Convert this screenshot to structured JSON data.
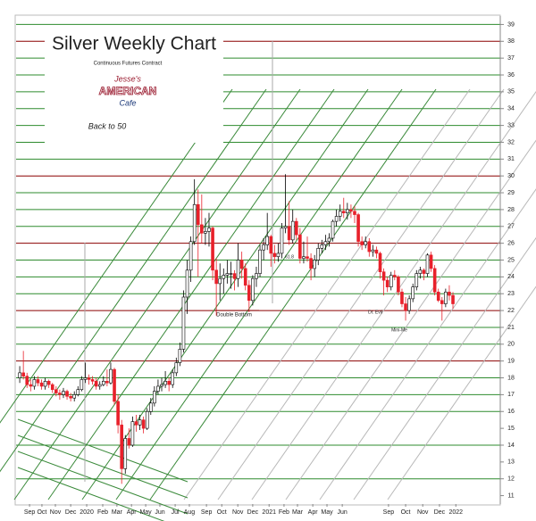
{
  "chart_data": {
    "type": "candlestick",
    "title": "Silver Weekly Chart",
    "subtitle": "Continuous Futures Contract",
    "logo": [
      "Jesse's",
      "AMERICAN",
      "Cafe"
    ],
    "tagline": "Back to 50",
    "annotations": [
      "Double Bottom",
      "61.8",
      "Dr. Evil",
      "Mini-Me"
    ],
    "up_color": "#ffffff",
    "down_color": "#e8202a",
    "ylim": [
      10.5,
      39.5
    ],
    "yticks": [
      11,
      12,
      13,
      14,
      15,
      16,
      17,
      18,
      19,
      20,
      21,
      22,
      23,
      24,
      25,
      26,
      27,
      28,
      29,
      30,
      31,
      32,
      33,
      34,
      35,
      36,
      37,
      38,
      39
    ],
    "xlim": [
      -1,
      132
    ],
    "xticks": [
      {
        "value": 2.7,
        "label": "Sep"
      },
      {
        "value": 6.1,
        "label": "Oct"
      },
      {
        "value": 9.8,
        "label": "Nov"
      },
      {
        "value": 14.0,
        "label": "Dec"
      },
      {
        "value": 18.4,
        "label": "2020"
      },
      {
        "value": 22.8,
        "label": "Feb"
      },
      {
        "value": 26.7,
        "label": "Mar"
      },
      {
        "value": 30.7,
        "label": "Apr"
      },
      {
        "value": 34.6,
        "label": "May"
      },
      {
        "value": 38.5,
        "label": "Jun"
      },
      {
        "value": 42.7,
        "label": "Jul"
      },
      {
        "value": 46.6,
        "label": "Aug"
      },
      {
        "value": 51.3,
        "label": "Sep"
      },
      {
        "value": 55.5,
        "label": "Oct"
      },
      {
        "value": 59.9,
        "label": "Nov"
      },
      {
        "value": 64.0,
        "label": "Dec"
      },
      {
        "value": 68.5,
        "label": "2021"
      },
      {
        "value": 72.6,
        "label": "Feb"
      },
      {
        "value": 76.3,
        "label": "Mar"
      },
      {
        "value": 80.5,
        "label": "Apr"
      },
      {
        "value": 84.4,
        "label": "May"
      },
      {
        "value": 88.6,
        "label": "Jun"
      },
      {
        "value": 101.3,
        "label": "Sep"
      },
      {
        "value": 106.0,
        "label": "Oct"
      },
      {
        "value": 110.7,
        "label": "Nov"
      },
      {
        "value": 115.3,
        "label": "Dec"
      },
      {
        "value": 119.8,
        "label": "2022"
      }
    ],
    "hlines": [
      {
        "color": "#2e8b2e",
        "values": [
          12,
          14,
          16,
          17,
          18,
          20,
          21,
          23,
          24,
          25,
          27,
          28,
          29,
          31,
          32,
          33,
          34,
          35,
          36,
          37,
          39
        ]
      },
      {
        "color": "#8b0000",
        "values": [
          19,
          22,
          26,
          30,
          38
        ]
      }
    ],
    "x": [
      0,
      1,
      2,
      3,
      4,
      5,
      6,
      7,
      8,
      9,
      10,
      11,
      12,
      13,
      14,
      15,
      16,
      17,
      18,
      19,
      20,
      21,
      22,
      23,
      24,
      25,
      26,
      27,
      28,
      29,
      30,
      31,
      32,
      33,
      34,
      35,
      36,
      37,
      38,
      39,
      40,
      41,
      42,
      43,
      44,
      45,
      46,
      47,
      48,
      49,
      50,
      51,
      52,
      53,
      54,
      55,
      56,
      57,
      58,
      59,
      60,
      61,
      62,
      63,
      64,
      65,
      66,
      67,
      68,
      69,
      70,
      71,
      72,
      73,
      74,
      75,
      76,
      77,
      78,
      79,
      80,
      81,
      82,
      83,
      84,
      85,
      86,
      87,
      88,
      89,
      90,
      91,
      92,
      93,
      94,
      95,
      96,
      97,
      98,
      99,
      100,
      101,
      102,
      103,
      104,
      105,
      106,
      107,
      108,
      109,
      110,
      111,
      112,
      113,
      114,
      115,
      116,
      117,
      118,
      119
    ],
    "candles": [
      [
        18.0,
        18.7,
        17.7,
        18.3
      ],
      [
        18.3,
        19.6,
        17.9,
        18.1
      ],
      [
        18.1,
        18.3,
        17.4,
        17.6
      ],
      [
        17.6,
        17.9,
        17.2,
        17.5
      ],
      [
        17.5,
        18.1,
        17.3,
        17.9
      ],
      [
        17.9,
        18.1,
        17.5,
        17.7
      ],
      [
        17.7,
        17.9,
        17.3,
        17.5
      ],
      [
        17.5,
        18.0,
        17.3,
        17.8
      ],
      [
        17.8,
        17.9,
        17.4,
        17.6
      ],
      [
        17.6,
        17.7,
        17.1,
        17.3
      ],
      [
        17.3,
        17.5,
        16.9,
        17.1
      ],
      [
        17.1,
        17.3,
        16.7,
        17.0
      ],
      [
        17.0,
        17.4,
        16.8,
        17.2
      ],
      [
        17.2,
        17.3,
        16.7,
        16.9
      ],
      [
        16.9,
        17.1,
        16.6,
        16.8
      ],
      [
        16.8,
        17.2,
        16.6,
        17.0
      ],
      [
        17.0,
        17.5,
        16.9,
        17.3
      ],
      [
        17.3,
        18.1,
        17.2,
        17.9
      ],
      [
        17.9,
        18.9,
        17.7,
        18.0
      ],
      [
        18.0,
        18.2,
        17.6,
        17.9
      ],
      [
        17.9,
        18.1,
        17.6,
        17.8
      ],
      [
        17.8,
        18.0,
        17.3,
        17.5
      ],
      [
        17.5,
        17.8,
        17.3,
        17.6
      ],
      [
        17.6,
        18.1,
        17.5,
        17.8
      ],
      [
        17.8,
        18.5,
        17.5,
        17.7
      ],
      [
        17.7,
        18.9,
        17.6,
        18.5
      ],
      [
        18.5,
        18.6,
        16.4,
        16.6
      ],
      [
        16.6,
        17.0,
        14.7,
        15.2
      ],
      [
        15.2,
        15.5,
        11.7,
        12.6
      ],
      [
        12.6,
        14.6,
        12.3,
        14.4
      ],
      [
        14.4,
        15.0,
        13.8,
        14.0
      ],
      [
        14.0,
        15.7,
        13.9,
        15.4
      ],
      [
        15.4,
        15.8,
        14.8,
        15.2
      ],
      [
        15.2,
        15.8,
        14.9,
        15.5
      ],
      [
        15.5,
        15.7,
        14.7,
        15.0
      ],
      [
        15.0,
        16.2,
        14.9,
        16.0
      ],
      [
        16.0,
        16.8,
        15.8,
        16.5
      ],
      [
        16.5,
        17.5,
        16.3,
        17.2
      ],
      [
        17.2,
        17.9,
        17.0,
        17.5
      ],
      [
        17.5,
        18.0,
        17.2,
        17.6
      ],
      [
        17.6,
        18.4,
        17.4,
        17.8
      ],
      [
        17.8,
        18.0,
        17.2,
        17.6
      ],
      [
        17.6,
        18.5,
        17.4,
        18.3
      ],
      [
        18.3,
        19.2,
        18.1,
        18.9
      ],
      [
        18.9,
        20.1,
        18.7,
        19.7
      ],
      [
        19.7,
        23.2,
        19.5,
        22.8
      ],
      [
        22.8,
        25.0,
        21.8,
        24.4
      ],
      [
        24.4,
        26.4,
        23.7,
        26.1
      ],
      [
        26.1,
        29.8,
        25.9,
        28.3
      ],
      [
        28.3,
        29.2,
        24.0,
        27.1
      ],
      [
        27.1,
        28.9,
        26.0,
        26.6
      ],
      [
        26.6,
        27.5,
        25.9,
        26.7
      ],
      [
        26.7,
        27.8,
        25.8,
        26.9
      ],
      [
        26.9,
        27.0,
        23.8,
        24.4
      ],
      [
        24.4,
        25.1,
        21.7,
        23.6
      ],
      [
        23.6,
        24.8,
        22.6,
        23.9
      ],
      [
        23.9,
        24.5,
        23.0,
        24.1
      ],
      [
        24.1,
        25.0,
        23.6,
        24.2
      ],
      [
        24.2,
        24.9,
        23.3,
        24.2
      ],
      [
        24.2,
        24.4,
        23.2,
        23.9
      ],
      [
        23.9,
        26.0,
        23.4,
        25.0
      ],
      [
        25.0,
        25.5,
        23.9,
        24.5
      ],
      [
        24.5,
        24.8,
        23.2,
        23.5
      ],
      [
        23.5,
        23.8,
        21.9,
        22.6
      ],
      [
        22.6,
        24.1,
        22.3,
        23.9
      ],
      [
        23.9,
        24.6,
        23.4,
        24.2
      ],
      [
        24.2,
        25.9,
        24.0,
        25.6
      ],
      [
        25.6,
        26.3,
        25.0,
        25.9
      ],
      [
        25.9,
        27.8,
        25.6,
        26.4
      ],
      [
        26.4,
        26.5,
        24.6,
        25.4
      ],
      [
        25.4,
        25.9,
        24.8,
        25.2
      ],
      [
        25.2,
        26.0,
        24.9,
        25.4
      ],
      [
        25.4,
        27.2,
        25.1,
        26.9
      ],
      [
        26.9,
        30.1,
        26.6,
        27.0
      ],
      [
        27.0,
        28.5,
        25.9,
        26.2
      ],
      [
        26.2,
        28.0,
        26.0,
        27.3
      ],
      [
        27.3,
        27.5,
        26.2,
        26.5
      ],
      [
        26.5,
        26.9,
        24.8,
        25.1
      ],
      [
        25.1,
        26.1,
        24.8,
        25.2
      ],
      [
        25.2,
        26.4,
        24.9,
        25.1
      ],
      [
        25.1,
        25.4,
        23.8,
        24.5
      ],
      [
        24.5,
        25.3,
        24.0,
        25.0
      ],
      [
        25.0,
        26.0,
        24.7,
        25.7
      ],
      [
        25.7,
        26.2,
        25.4,
        25.9
      ],
      [
        25.9,
        26.5,
        25.6,
        26.1
      ],
      [
        26.1,
        26.6,
        25.8,
        26.3
      ],
      [
        26.3,
        27.4,
        26.1,
        27.3
      ],
      [
        27.3,
        28.0,
        27.0,
        27.6
      ],
      [
        27.6,
        28.3,
        27.3,
        27.9
      ],
      [
        27.9,
        28.7,
        27.5,
        27.8
      ],
      [
        27.8,
        28.4,
        27.4,
        28.0
      ],
      [
        28.0,
        28.3,
        27.5,
        27.9
      ],
      [
        27.9,
        28.2,
        27.2,
        27.7
      ],
      [
        27.7,
        27.8,
        25.8,
        26.1
      ],
      [
        26.1,
        26.4,
        25.6,
        25.9
      ],
      [
        25.9,
        26.4,
        25.7,
        26.1
      ],
      [
        26.1,
        26.3,
        25.2,
        25.5
      ],
      [
        25.5,
        25.9,
        25.2,
        25.6
      ],
      [
        25.6,
        25.8,
        25.1,
        25.4
      ],
      [
        25.4,
        25.5,
        23.9,
        24.3
      ],
      [
        24.3,
        24.5,
        22.9,
        23.8
      ],
      [
        23.8,
        24.0,
        23.1,
        23.4
      ],
      [
        23.4,
        24.3,
        23.2,
        24.1
      ],
      [
        24.1,
        24.4,
        23.8,
        24.0
      ],
      [
        24.0,
        24.1,
        22.9,
        23.1
      ],
      [
        23.1,
        23.3,
        22.2,
        22.4
      ],
      [
        22.4,
        22.8,
        21.4,
        22.0
      ],
      [
        22.0,
        22.9,
        21.8,
        22.7
      ],
      [
        22.7,
        23.6,
        22.5,
        23.4
      ],
      [
        23.4,
        24.4,
        23.2,
        24.2
      ],
      [
        24.2,
        24.6,
        23.9,
        24.4
      ],
      [
        24.4,
        24.5,
        23.8,
        24.2
      ],
      [
        24.2,
        25.4,
        24.0,
        25.3
      ],
      [
        25.3,
        25.5,
        24.3,
        24.5
      ],
      [
        24.5,
        24.7,
        22.9,
        23.1
      ],
      [
        23.1,
        23.3,
        22.5,
        22.6
      ],
      [
        22.6,
        22.8,
        21.4,
        22.4
      ],
      [
        22.4,
        23.3,
        22.2,
        23.1
      ],
      [
        23.1,
        23.5,
        22.6,
        22.9
      ],
      [
        22.9,
        23.1,
        22.1,
        22.4
      ]
    ]
  }
}
